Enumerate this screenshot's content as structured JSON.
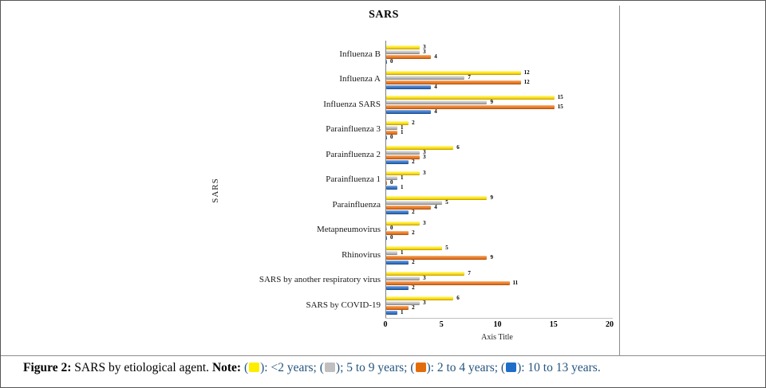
{
  "chart_data": {
    "type": "bar",
    "orientation": "horizontal",
    "title": "SARS",
    "xlabel": "Axis Title",
    "ylabel": "SARS",
    "xlim": [
      0,
      20
    ],
    "x_ticks": [
      0,
      5,
      10,
      15,
      20
    ],
    "grid": false,
    "legend_position": "figure-caption",
    "categories": [
      "Influenza B",
      "Influenza A",
      "Influenza SARS",
      "Parainfluenza 3",
      "Parainfluenza 2",
      "Parainfluenza 1",
      "Parainfluenza",
      "Metapneumovirus",
      "Rhinovirus",
      "SARS by another respiratory virus",
      "SARS by COVID-19"
    ],
    "series": [
      {
        "name": "<2 years",
        "color": "#ffe600",
        "values": [
          3,
          12,
          15,
          2,
          6,
          3,
          9,
          3,
          5,
          7,
          6
        ]
      },
      {
        "name": "5 to 9 years",
        "color": "#bfbfbf",
        "values": [
          3,
          7,
          9,
          1,
          3,
          1,
          5,
          0,
          1,
          3,
          3
        ]
      },
      {
        "name": "2 to 4 years",
        "color": "#ed7d31",
        "values": [
          4,
          12,
          15,
          1,
          3,
          0,
          4,
          2,
          9,
          11,
          2
        ]
      },
      {
        "name": "10 to 13 years",
        "color": "#2e75b6",
        "values": [
          0,
          4,
          4,
          0,
          2,
          1,
          2,
          0,
          2,
          2,
          1
        ]
      }
    ]
  },
  "caption": {
    "figure_label": "Figure 2:",
    "description": " SARS by etiological agent. ",
    "note_label": "Note:",
    "legend": [
      {
        "color": "#fdee00",
        "separator": ":",
        "label": "<2 years"
      },
      {
        "color": "#c0c0c0",
        "separator": ";",
        "label": "5 to 9 years"
      },
      {
        "color": "#e36c0a",
        "separator": ":",
        "label": "2 to 4 years"
      },
      {
        "color": "#1e6ec8",
        "separator": ":",
        "label": "10 to 13 years"
      }
    ]
  }
}
